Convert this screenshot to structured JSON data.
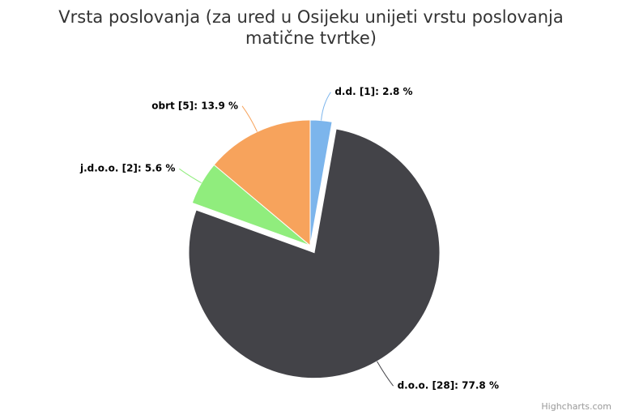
{
  "chart_data": {
    "type": "pie",
    "title": "Vrsta poslovanja (za ured u Osijeku unijeti vrstu poslovanja matične tvrtke)",
    "values": [
      2.8,
      77.8,
      5.6,
      13.9
    ],
    "value_labels": [
      "d.d. [1]: 2.8 %",
      "d.o.o. [28]: 77.8 %",
      "j.d.o.o. [2]: 5.6 %",
      "obrt [5]: 13.9 %"
    ],
    "colors": [
      "#7cb5ec",
      "#434348",
      "#90ed7d",
      "#f7a35c"
    ],
    "sliced": [
      false,
      true,
      false,
      false
    ],
    "credits": "Highcharts.com"
  }
}
